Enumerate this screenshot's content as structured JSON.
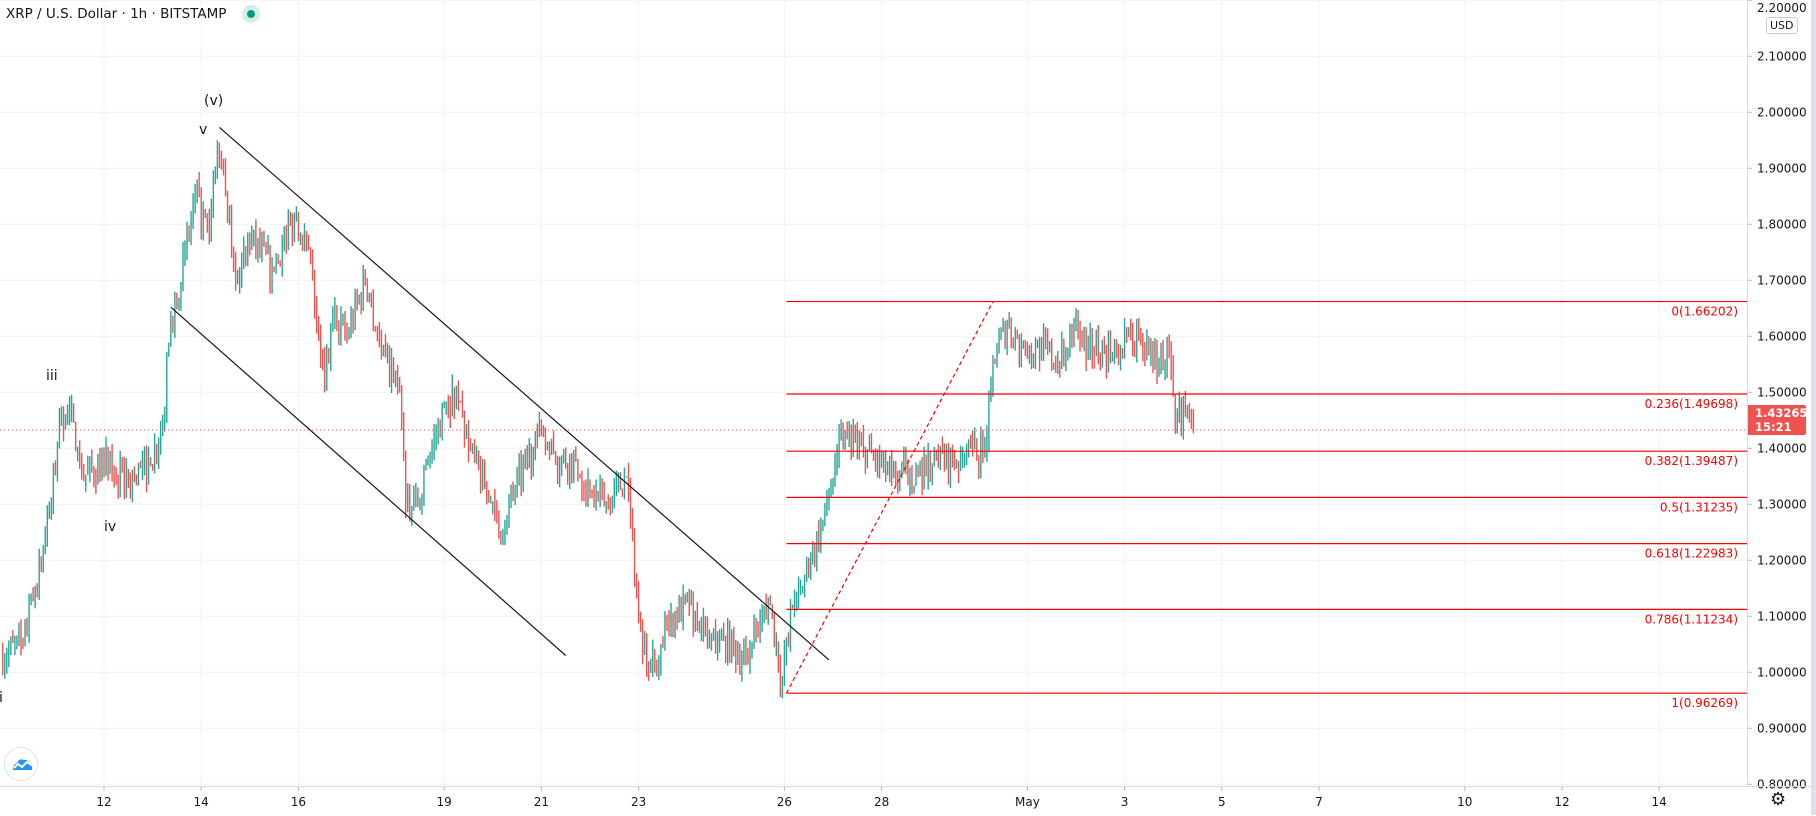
{
  "header": {
    "symbol_title": "XRP / U.S. Dollar · 1h · BITSTAMP",
    "market_status": "open",
    "status_color": "#089981"
  },
  "price_axis": {
    "currency": "USD",
    "current_price": "1.43265",
    "countdown": "15:21",
    "current_price_color": "#ef5350"
  },
  "icons": {
    "logo": "tradingview-cloud-icon",
    "settings": "gear-icon"
  },
  "annotations": {
    "wave_v_paren": "(v)",
    "wave_v": "v",
    "wave_iii": "iii",
    "wave_iv": "iv",
    "wave_i": "i"
  },
  "chart_data": {
    "type": "ohlc-bar",
    "title": "XRP / U.S. Dollar · 1h · BITSTAMP",
    "interval": "1h",
    "ylim": [
      0.78,
      2.2
    ],
    "y_ticks": [
      "2.20000",
      "2.10000",
      "2.00000",
      "1.90000",
      "1.80000",
      "1.70000",
      "1.60000",
      "1.50000",
      "1.40000",
      "1.30000",
      "1.20000",
      "1.10000",
      "1.00000",
      "0.90000",
      "0.80000"
    ],
    "x_ticks": [
      {
        "label": "12",
        "date": "04-12"
      },
      {
        "label": "14",
        "date": "04-14"
      },
      {
        "label": "16",
        "date": "04-16"
      },
      {
        "label": "19",
        "date": "04-19"
      },
      {
        "label": "21",
        "date": "04-21"
      },
      {
        "label": "23",
        "date": "04-23"
      },
      {
        "label": "26",
        "date": "04-26"
      },
      {
        "label": "28",
        "date": "04-28"
      },
      {
        "label": "May",
        "date": "05-01"
      },
      {
        "label": "3",
        "date": "05-03"
      },
      {
        "label": "5",
        "date": "05-05"
      },
      {
        "label": "7",
        "date": "05-07"
      },
      {
        "label": "10",
        "date": "05-10"
      },
      {
        "label": "12",
        "date": "05-12"
      },
      {
        "label": "14",
        "date": "05-14"
      }
    ],
    "grid": true,
    "up_color": "#26a69a",
    "down_color": "#ef5350",
    "price_path": [
      [
        "04-09 21:00",
        1.03
      ],
      [
        "04-10 08:00",
        1.05
      ],
      [
        "04-10 14:00",
        1.15
      ],
      [
        "04-10 22:00",
        1.3
      ],
      [
        "04-11 02:00",
        1.45
      ],
      [
        "04-11 07:00",
        1.47
      ],
      [
        "04-11 13:00",
        1.35
      ],
      [
        "04-12 00:00",
        1.37
      ],
      [
        "04-12 12:00",
        1.34
      ],
      [
        "04-12 23:00",
        1.37
      ],
      [
        "04-13 05:00",
        1.45
      ],
      [
        "04-13 09:00",
        1.63
      ],
      [
        "04-13 16:00",
        1.75
      ],
      [
        "04-13 21:00",
        1.85
      ],
      [
        "04-14 04:00",
        1.78
      ],
      [
        "04-14 08:00",
        1.94
      ],
      [
        "04-14 12:00",
        1.85
      ],
      [
        "04-14 18:00",
        1.7
      ],
      [
        "04-14 23:00",
        1.78
      ],
      [
        "04-15 11:00",
        1.72
      ],
      [
        "04-15 23:00",
        1.82
      ],
      [
        "04-16 07:00",
        1.7
      ],
      [
        "04-16 13:00",
        1.52
      ],
      [
        "04-16 18:00",
        1.65
      ],
      [
        "04-17 00:00",
        1.6
      ],
      [
        "04-17 09:00",
        1.7
      ],
      [
        "04-17 17:00",
        1.58
      ],
      [
        "04-18 02:00",
        1.5
      ],
      [
        "04-18 05:00",
        1.3
      ],
      [
        "04-18 11:00",
        1.3
      ],
      [
        "04-18 16:00",
        1.38
      ],
      [
        "04-19 01:00",
        1.48
      ],
      [
        "04-19 06:00",
        1.5
      ],
      [
        "04-19 12:00",
        1.4
      ],
      [
        "04-19 21:00",
        1.32
      ],
      [
        "04-20 03:00",
        1.25
      ],
      [
        "04-20 08:00",
        1.3
      ],
      [
        "04-20 17:00",
        1.38
      ],
      [
        "04-21 01:00",
        1.43
      ],
      [
        "04-21 07:00",
        1.38
      ],
      [
        "04-21 16:00",
        1.38
      ],
      [
        "04-22 00:00",
        1.32
      ],
      [
        "04-22 09:00",
        1.3
      ],
      [
        "04-22 18:00",
        1.35
      ],
      [
        "04-22 20:00",
        1.28
      ],
      [
        "04-23 00:00",
        1.1
      ],
      [
        "04-23 05:00",
        1.0
      ],
      [
        "04-23 11:00",
        1.05
      ],
      [
        "04-23 16:00",
        1.1
      ],
      [
        "04-24 01:00",
        1.12
      ],
      [
        "04-24 10:00",
        1.06
      ],
      [
        "04-24 18:00",
        1.06
      ],
      [
        "04-25 03:00",
        1.03
      ],
      [
        "04-25 11:00",
        1.07
      ],
      [
        "04-25 17:00",
        1.12
      ],
      [
        "04-25 23:00",
        0.98
      ],
      [
        "04-26 04:00",
        1.12
      ],
      [
        "04-26 13:00",
        1.2
      ],
      [
        "04-26 20:00",
        1.28
      ],
      [
        "04-27 03:00",
        1.42
      ],
      [
        "04-27 15:00",
        1.4
      ],
      [
        "04-28 05:00",
        1.35
      ],
      [
        "04-28 17:00",
        1.36
      ],
      [
        "04-29 04:00",
        1.38
      ],
      [
        "04-29 15:00",
        1.38
      ],
      [
        "04-30 03:00",
        1.4
      ],
      [
        "04-30 07:00",
        1.56
      ],
      [
        "04-30 14:00",
        1.62
      ],
      [
        "04-30 23:00",
        1.57
      ],
      [
        "05-01 07:00",
        1.58
      ],
      [
        "05-01 16:00",
        1.55
      ],
      [
        "05-02 00:00",
        1.63
      ],
      [
        "05-02 06:00",
        1.58
      ],
      [
        "05-02 18:00",
        1.57
      ],
      [
        "05-03 08:00",
        1.6
      ],
      [
        "05-03 14:00",
        1.55
      ],
      [
        "05-03 22:00",
        1.57
      ],
      [
        "05-04 01:00",
        1.45
      ],
      [
        "05-04 07:00",
        1.47
      ],
      [
        "05-04 10:00",
        1.43265
      ]
    ],
    "drawings": {
      "channel_upper": [
        [
          "04-14 09:00",
          1.973
        ],
        [
          "04-26 22:00",
          1.022
        ]
      ],
      "channel_lower": [
        [
          "04-13 09:00",
          1.652
        ],
        [
          "04-21 12:00",
          1.03
        ]
      ],
      "fib_trend": [
        [
          "04-26 01:00",
          0.96269
        ],
        [
          "04-30 07:00",
          1.66202
        ]
      ],
      "fib_color": "#ff0000",
      "fib_levels": [
        {
          "label": "0(1.66202)",
          "price": 1.66202
        },
        {
          "label": "0.236(1.49698)",
          "price": 1.49698
        },
        {
          "label": "0.382(1.39487)",
          "price": 1.39487
        },
        {
          "label": "0.5(1.31235)",
          "price": 1.31235
        },
        {
          "label": "0.618(1.22983)",
          "price": 1.22983
        },
        {
          "label": "0.786(1.11234)",
          "price": 1.11234
        },
        {
          "label": "1(0.96269)",
          "price": 0.96269
        }
      ]
    }
  }
}
